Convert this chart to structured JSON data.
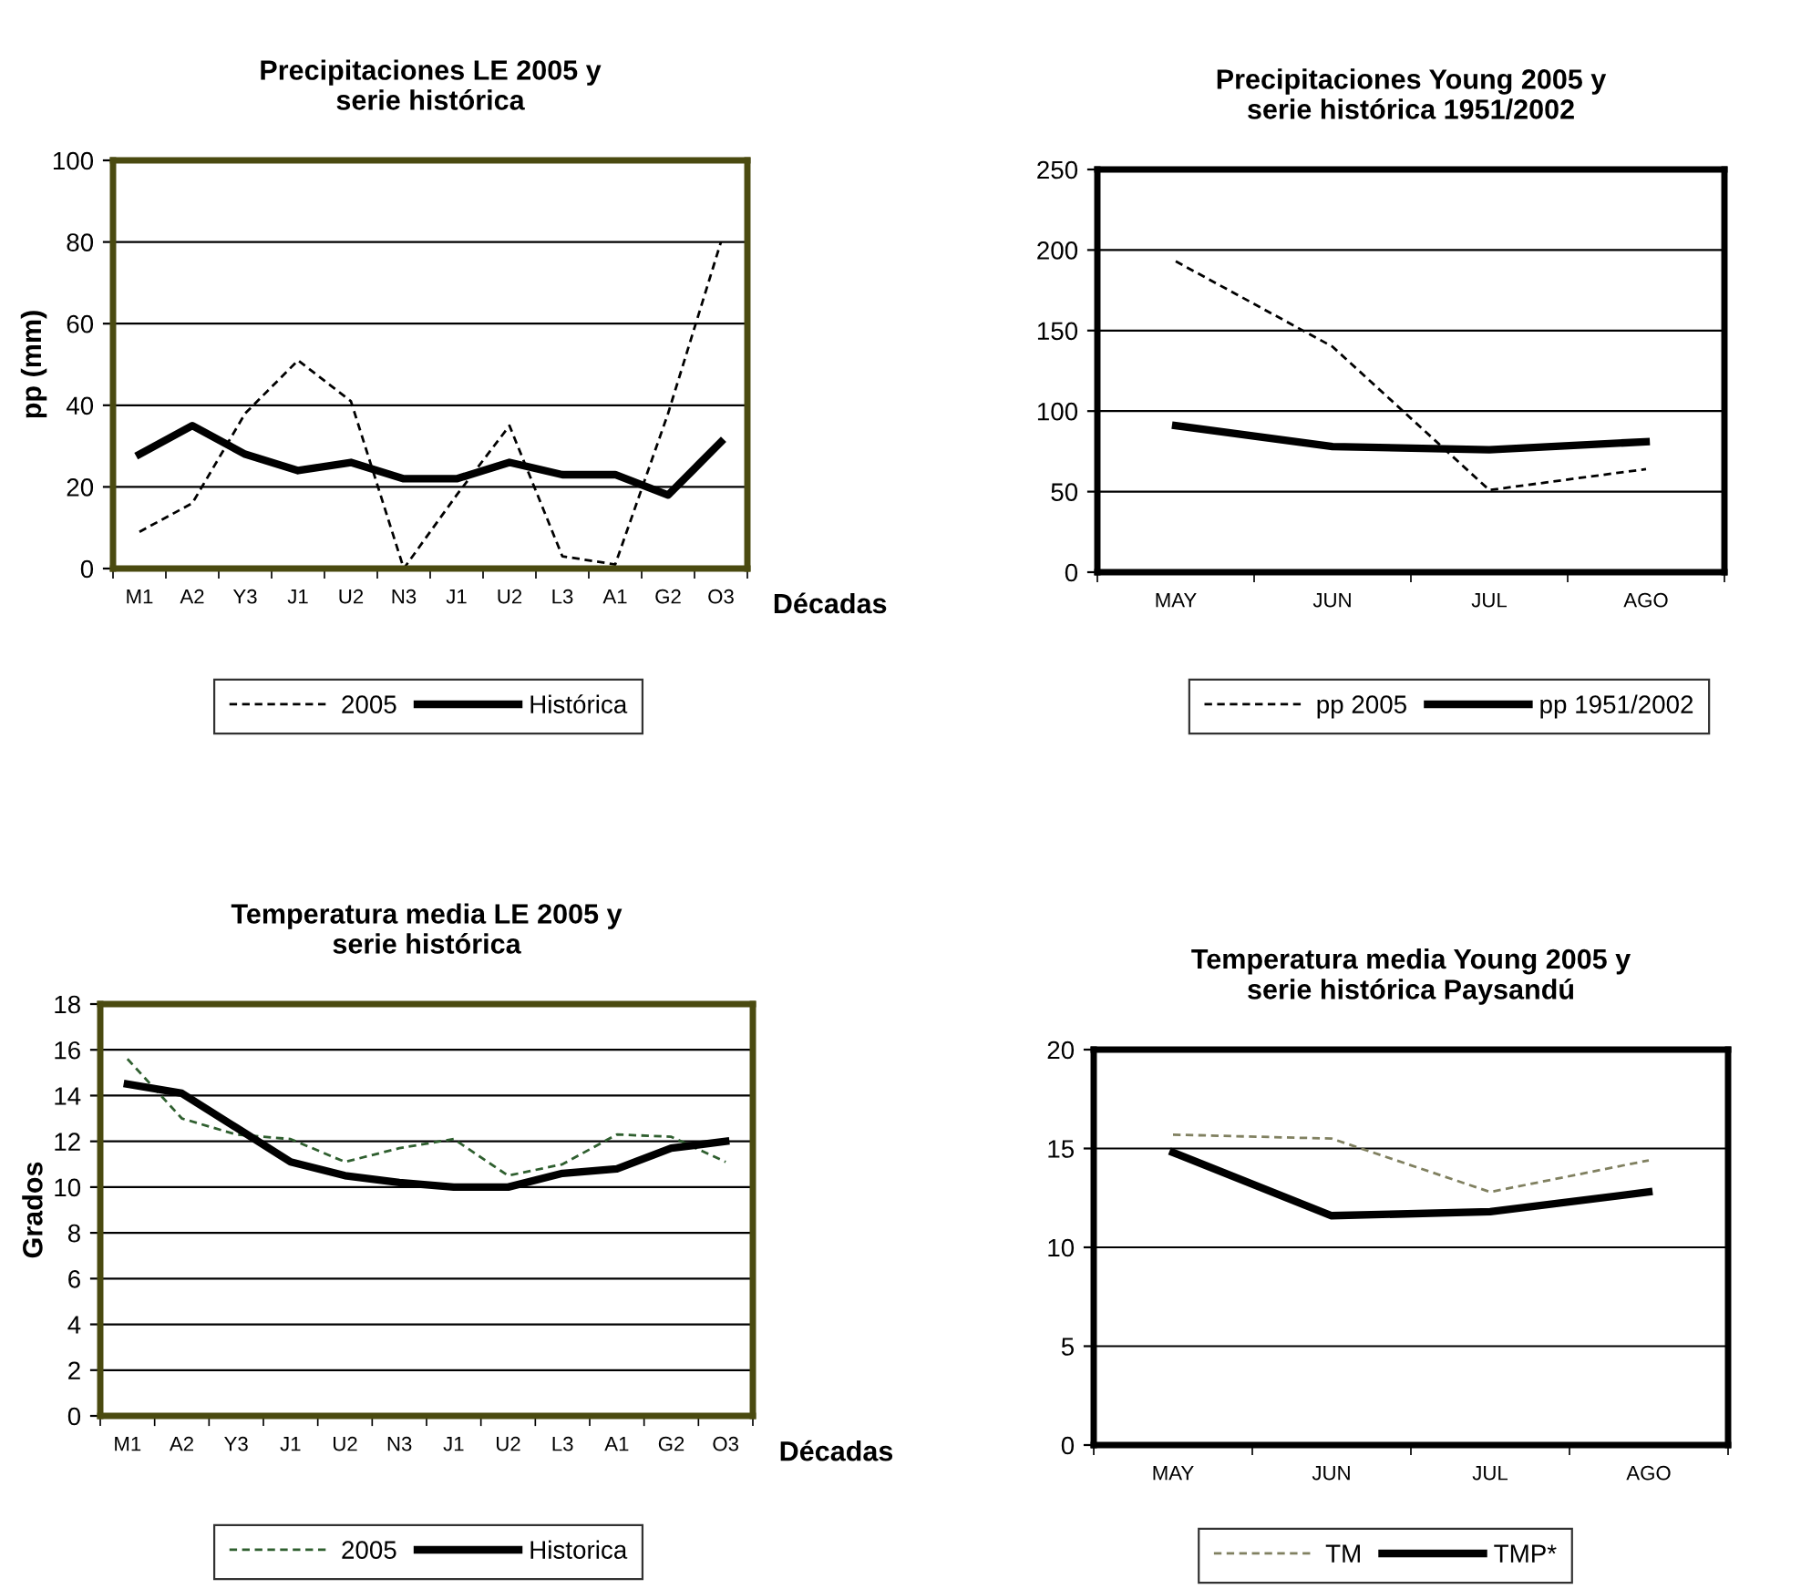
{
  "chart_data": [
    {
      "type": "line",
      "title": "Precipitaciones LE 2005 y\nserie histórica",
      "xlabel": "Décadas",
      "ylabel": "pp (mm)",
      "categories": [
        "M1",
        "A2",
        "Y3",
        "J1",
        "U2",
        "N3",
        "J1",
        "U2",
        "L3",
        "A1",
        "G2",
        "O3"
      ],
      "ylim": [
        0,
        100
      ],
      "yticks": [
        0,
        20,
        40,
        60,
        80,
        100
      ],
      "grid": "y",
      "legend": "bottom",
      "marker": "none",
      "series": [
        {
          "name": "2005",
          "color": "#000000",
          "line_style": "dashed",
          "values": [
            9,
            16,
            38,
            51,
            41,
            0,
            18,
            35,
            3,
            1,
            38,
            80
          ]
        },
        {
          "name": "Histórica",
          "color": "#000000",
          "line_style": "solid",
          "values": [
            28,
            35,
            28,
            24,
            26,
            22,
            22,
            26,
            23,
            23,
            18,
            31
          ]
        }
      ]
    },
    {
      "type": "line",
      "title": "Precipitaciones Young 2005 y\nserie histórica 1951/2002",
      "categories": [
        "MAY",
        "JUN",
        "JUL",
        "AGO"
      ],
      "ylim": [
        0,
        250
      ],
      "yticks": [
        0,
        50,
        100,
        150,
        200,
        250
      ],
      "grid": "y",
      "legend": "bottom",
      "marker": "none",
      "series": [
        {
          "name": "pp 2005",
          "color": "#000000",
          "line_style": "dashed",
          "values": [
            193,
            140,
            51,
            64
          ]
        },
        {
          "name": "pp 1951/2002",
          "color": "#000000",
          "line_style": "solid",
          "values": [
            91,
            78,
            76,
            81
          ]
        }
      ]
    },
    {
      "type": "line",
      "title": "Temperatura media LE 2005 y\nserie histórica",
      "xlabel": "Décadas",
      "ylabel": "Grados",
      "categories": [
        "M1",
        "A2",
        "Y3",
        "J1",
        "U2",
        "N3",
        "J1",
        "U2",
        "L3",
        "A1",
        "G2",
        "O3"
      ],
      "ylim": [
        0,
        18
      ],
      "yticks": [
        0,
        2,
        4,
        6,
        8,
        10,
        12,
        14,
        16,
        18
      ],
      "grid": "y",
      "legend": "bottom",
      "marker": "none",
      "series": [
        {
          "name": "2005",
          "color": "#2f5f2f",
          "line_style": "dashed",
          "values": [
            15.6,
            13.0,
            12.3,
            12.1,
            11.1,
            11.7,
            12.1,
            10.5,
            11.0,
            12.3,
            12.2,
            11.1
          ]
        },
        {
          "name": "Historica",
          "color": "#000000",
          "line_style": "solid",
          "values": [
            14.5,
            14.1,
            12.6,
            11.1,
            10.5,
            10.2,
            10.0,
            10.0,
            10.6,
            10.8,
            11.7,
            12.0
          ]
        }
      ]
    },
    {
      "type": "line",
      "title": "Temperatura media Young 2005 y\nserie histórica Paysandú",
      "categories": [
        "MAY",
        "JUN",
        "JUL",
        "AGO"
      ],
      "ylim": [
        0,
        20
      ],
      "yticks": [
        0,
        5,
        10,
        15,
        20
      ],
      "grid": "y",
      "legend": "bottom",
      "marker": "none",
      "series": [
        {
          "name": "TM",
          "color": "#808060",
          "line_style": "dashed",
          "values": [
            15.7,
            15.5,
            12.8,
            14.4
          ]
        },
        {
          "name": "TMP*",
          "color": "#000000",
          "line_style": "solid",
          "values": [
            14.8,
            11.6,
            11.8,
            12.8
          ]
        }
      ]
    }
  ]
}
